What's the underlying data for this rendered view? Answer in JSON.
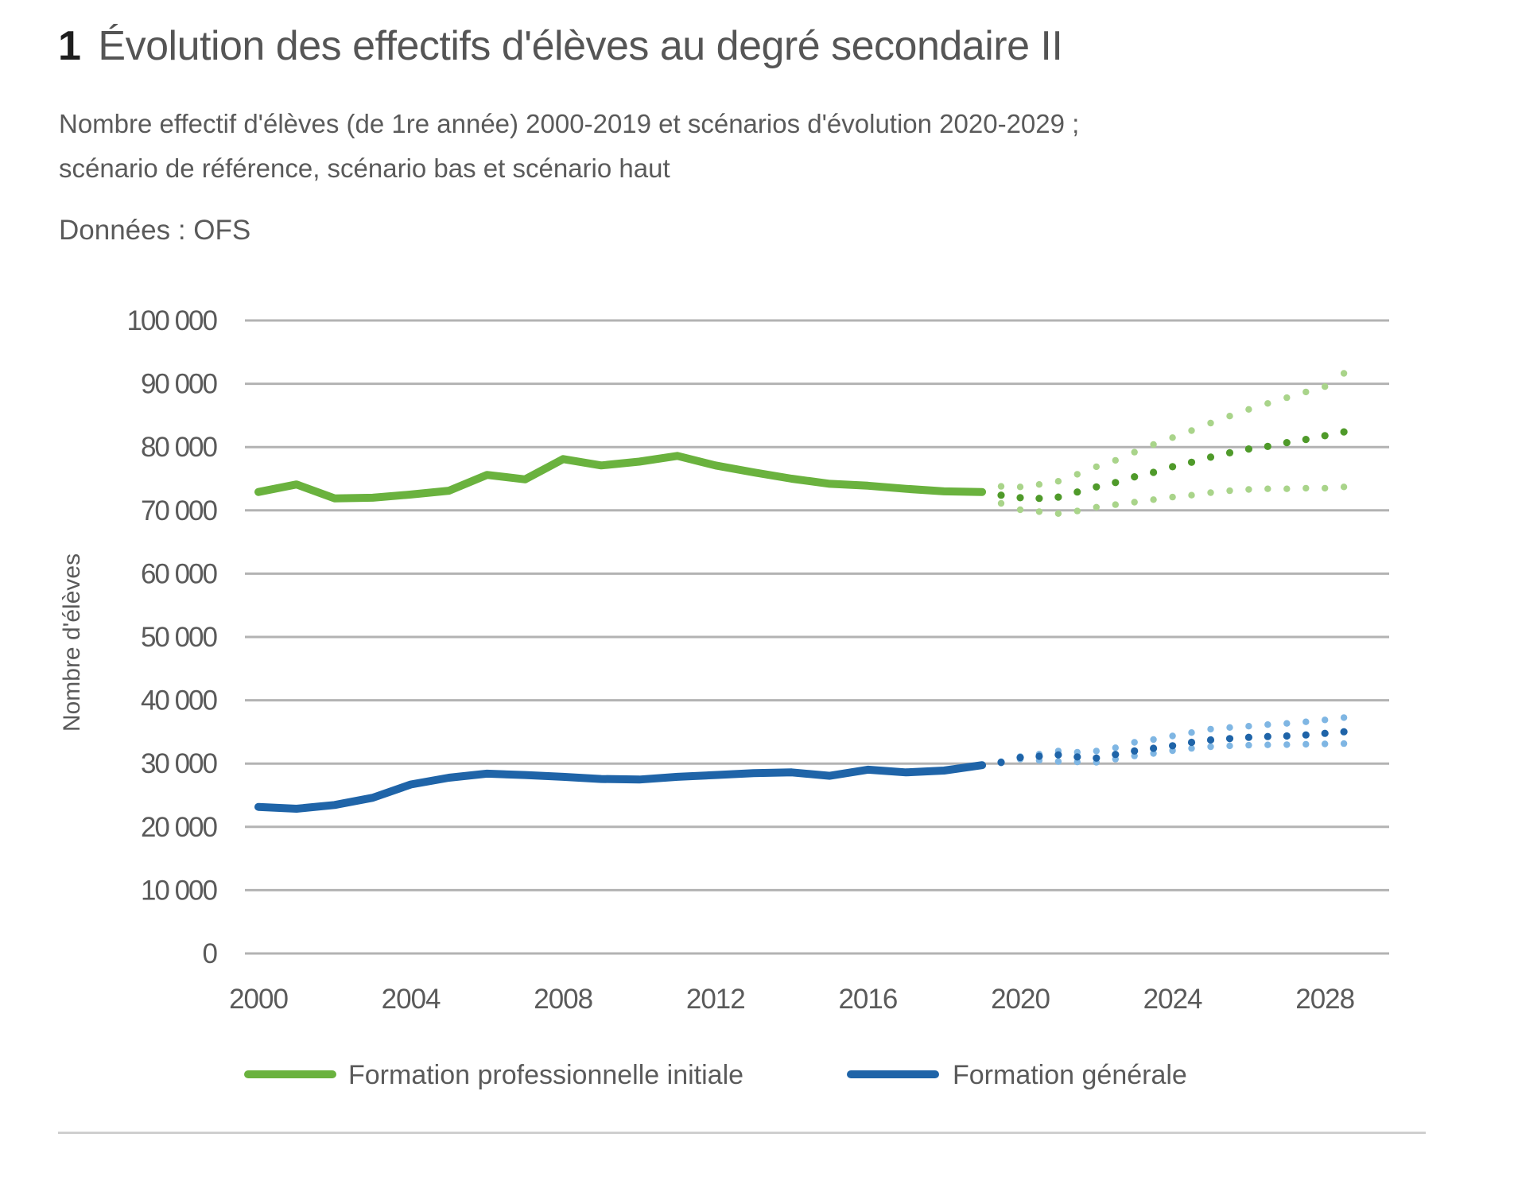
{
  "header": {
    "number": "1",
    "title": "Évolution des effectifs d'élèves au degré secondaire II",
    "subtitle_line1": "Nombre effectif d'élèves (de 1re année) 2000-2019 et scénarios d'évolution 2020-2029 ;",
    "subtitle_line2": "scénario de référence, scénario bas et scénario haut",
    "source": "Données : OFS"
  },
  "chart_data": {
    "type": "line",
    "title": "Évolution des effectifs d'élèves au degré secondaire II",
    "xlabel": "",
    "ylabel": "Nombre d'élèves",
    "xlim": [
      2000,
      2029
    ],
    "ylim": [
      0,
      100000
    ],
    "grid": true,
    "legend_position": "bottom",
    "y_ticks": [
      0,
      10000,
      20000,
      30000,
      40000,
      50000,
      60000,
      70000,
      80000,
      90000,
      100000
    ],
    "y_tick_labels": [
      "0",
      "10 000",
      "20 000",
      "30 000",
      "40 000",
      "50 000",
      "60 000",
      "70 000",
      "80 000",
      "90 000",
      "100 000"
    ],
    "x_ticks": [
      2000,
      2004,
      2008,
      2012,
      2016,
      2020,
      2024,
      2028
    ],
    "x_tick_labels": [
      "2000",
      "2004",
      "2008",
      "2012",
      "2016",
      "2020",
      "2024",
      "2028"
    ],
    "colors": {
      "green": "#6ab23e",
      "green_light": "#a9d48a",
      "blue": "#1f64a8",
      "blue_light": "#7fb6e3",
      "grid": "#b3b3b3"
    },
    "series": [
      {
        "name": "Formation professionnelle initiale",
        "color": "#6ab23e",
        "style": "solid",
        "x": [
          2000,
          2001,
          2002,
          2003,
          2004,
          2005,
          2006,
          2007,
          2008,
          2009,
          2010,
          2011,
          2012,
          2013,
          2014,
          2015,
          2016,
          2017,
          2018,
          2019
        ],
        "values": [
          72900,
          74100,
          71900,
          72000,
          72500,
          73100,
          75600,
          74900,
          78100,
          77100,
          77700,
          78600,
          77100,
          76000,
          75000,
          74200,
          73900,
          73400,
          73000,
          72900
        ]
      },
      {
        "name": "Formation professionnelle initiale – scénario de référence",
        "color": "#4f9a2a",
        "style": "dotted",
        "x": [
          2019.5,
          2020,
          2020.5,
          2021,
          2021.5,
          2022,
          2022.5,
          2023,
          2023.5,
          2024,
          2024.5,
          2025,
          2025.5,
          2026,
          2026.5,
          2027,
          2027.5,
          2028,
          2028.5
        ],
        "values": [
          72400,
          72000,
          71900,
          72100,
          72900,
          73700,
          74400,
          75300,
          76000,
          76900,
          77600,
          78400,
          79100,
          79700,
          80100,
          80700,
          81200,
          81800,
          82400
        ]
      },
      {
        "name": "Formation professionnelle initiale – scénario haut",
        "color": "#a9d48a",
        "style": "dotted",
        "x": [
          2019.5,
          2020,
          2020.5,
          2021,
          2021.5,
          2022,
          2022.5,
          2023,
          2023.5,
          2024,
          2024.5,
          2025,
          2025.5,
          2026,
          2026.5,
          2027,
          2027.5,
          2028,
          2028.5
        ],
        "values": [
          73800,
          73700,
          74100,
          74600,
          75700,
          76900,
          77900,
          79200,
          80400,
          81500,
          82600,
          83800,
          84900,
          85950,
          86900,
          87800,
          88700,
          89550,
          91650
        ]
      },
      {
        "name": "Formation professionnelle initiale – scénario bas",
        "color": "#a9d48a",
        "style": "dotted",
        "x": [
          2019.5,
          2020,
          2020.5,
          2021,
          2021.5,
          2022,
          2022.5,
          2023,
          2023.5,
          2024,
          2024.5,
          2025,
          2025.5,
          2026,
          2026.5,
          2027,
          2027.5,
          2028,
          2028.5
        ],
        "values": [
          71100,
          70100,
          69800,
          69500,
          69900,
          70500,
          70900,
          71300,
          71700,
          72100,
          72400,
          72800,
          73100,
          73300,
          73400,
          73400,
          73500,
          73500,
          73700
        ]
      },
      {
        "name": "Formation générale",
        "color": "#1f64a8",
        "style": "solid",
        "x": [
          2000,
          2001,
          2002,
          2003,
          2004,
          2005,
          2006,
          2007,
          2008,
          2009,
          2010,
          2011,
          2012,
          2013,
          2014,
          2015,
          2016,
          2017,
          2018,
          2019
        ],
        "values": [
          23150,
          22860,
          23450,
          24600,
          26700,
          27770,
          28400,
          28190,
          27900,
          27560,
          27480,
          27900,
          28190,
          28490,
          28610,
          28070,
          29030,
          28610,
          28900,
          29750
        ]
      },
      {
        "name": "Formation générale – scénario de référence",
        "color": "#1f64a8",
        "style": "dotted",
        "x": [
          2019.5,
          2020,
          2020.5,
          2021,
          2021.5,
          2022,
          2022.5,
          2023,
          2023.5,
          2024,
          2024.5,
          2025,
          2025.5,
          2026,
          2026.5,
          2027,
          2027.5,
          2028,
          2028.5
        ],
        "values": [
          30200,
          30950,
          31160,
          31370,
          31040,
          30870,
          31450,
          31990,
          32410,
          32820,
          33360,
          33730,
          33940,
          34150,
          34270,
          34360,
          34520,
          34770,
          35020
        ]
      },
      {
        "name": "Formation générale – scénario haut",
        "color": "#7fb6e3",
        "style": "dotted",
        "x": [
          2019.5,
          2020,
          2020.5,
          2021,
          2021.5,
          2022,
          2022.5,
          2023,
          2023.5,
          2024,
          2024.5,
          2025,
          2025.5,
          2026,
          2026.5,
          2027,
          2027.5,
          2028,
          2028.5
        ],
        "values": [
          30300,
          31100,
          31500,
          31990,
          31800,
          31990,
          32500,
          33360,
          33800,
          34360,
          34900,
          35440,
          35700,
          35900,
          36150,
          36350,
          36600,
          36900,
          37260
        ]
      },
      {
        "name": "Formation générale – scénario bas",
        "color": "#7fb6e3",
        "style": "dotted",
        "x": [
          2019.5,
          2020,
          2020.5,
          2021,
          2021.5,
          2022,
          2022.5,
          2023,
          2023.5,
          2024,
          2024.5,
          2025,
          2025.5,
          2026,
          2026.5,
          2027,
          2027.5,
          2028,
          2028.5
        ],
        "values": [
          30100,
          30700,
          30500,
          30330,
          30250,
          30200,
          30700,
          31200,
          31600,
          32030,
          32400,
          32660,
          32800,
          32900,
          32950,
          32990,
          33050,
          33100,
          33150
        ]
      }
    ],
    "legend": [
      {
        "label": "Formation professionnelle initiale",
        "color": "#6ab23e"
      },
      {
        "label": "Formation générale",
        "color": "#1f64a8"
      }
    ]
  }
}
